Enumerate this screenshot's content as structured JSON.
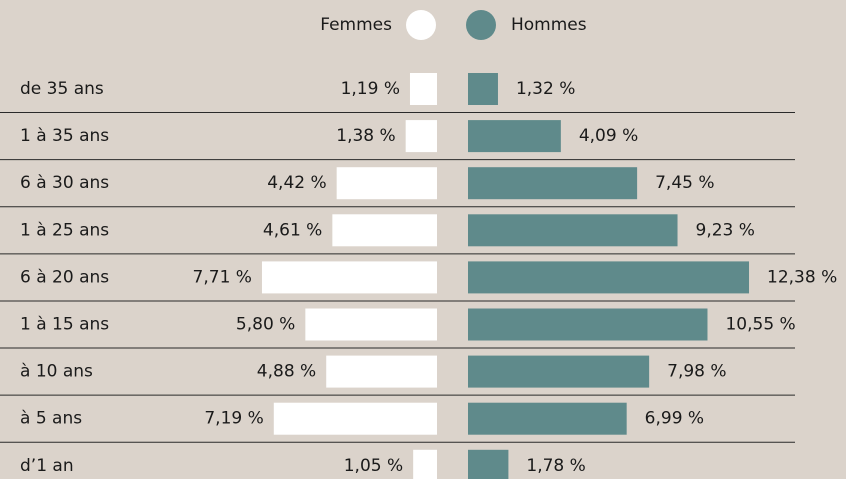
{
  "chart_data": {
    "type": "butterfly",
    "categories": [
      "de 35 ans",
      "1 à 35 ans",
      "6 à 30 ans",
      "1 à 25 ans",
      "6 à 20 ans",
      "1 à 15 ans",
      "à 10 ans",
      "à 5 ans",
      "d’1 an"
    ],
    "series": [
      {
        "name": "Femmes",
        "color": "#ffffff",
        "values": [
          1.19,
          1.38,
          4.42,
          4.61,
          7.71,
          5.8,
          4.88,
          7.19,
          1.05
        ],
        "value_labels": [
          "1,19 %",
          "1,38 %",
          "4,42 %",
          "4,61 %",
          "7,71 %",
          "5,80 %",
          "4,88 %",
          "7,19 %",
          "1,05 %"
        ]
      },
      {
        "name": "Hommes",
        "color": "#5f8a8b",
        "values": [
          1.32,
          4.09,
          7.45,
          9.23,
          12.38,
          10.55,
          7.98,
          6.99,
          1.78
        ],
        "value_labels": [
          "1,32 %",
          "4,09 %",
          "7,45 %",
          "9,23 %",
          "12,38 %",
          "10,55 %",
          "7,98 %",
          "6,99 %",
          "1,78 %"
        ]
      }
    ]
  }
}
